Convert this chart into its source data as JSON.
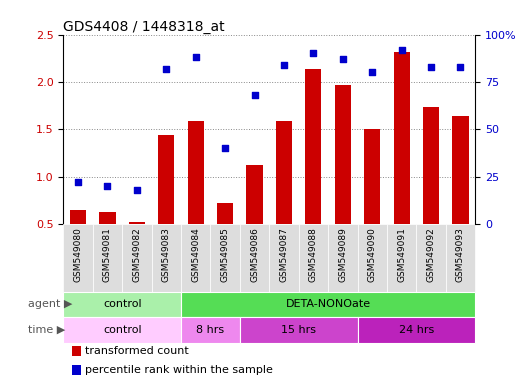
{
  "title": "GDS4408 / 1448318_at",
  "samples": [
    "GSM549080",
    "GSM549081",
    "GSM549082",
    "GSM549083",
    "GSM549084",
    "GSM549085",
    "GSM549086",
    "GSM549087",
    "GSM549088",
    "GSM549089",
    "GSM549090",
    "GSM549091",
    "GSM549092",
    "GSM549093"
  ],
  "transformed_count": [
    0.65,
    0.63,
    0.52,
    1.44,
    1.59,
    0.72,
    1.12,
    1.59,
    2.14,
    1.97,
    1.5,
    2.32,
    1.74,
    1.64
  ],
  "percentile_rank": [
    22,
    20,
    18,
    82,
    88,
    40,
    68,
    84,
    90,
    87,
    80,
    92,
    83,
    83
  ],
  "ylim_left": [
    0.5,
    2.5
  ],
  "ylim_right": [
    0,
    100
  ],
  "yticks_left": [
    0.5,
    1.0,
    1.5,
    2.0,
    2.5
  ],
  "yticks_right": [
    0,
    25,
    50,
    75,
    100
  ],
  "bar_color": "#cc0000",
  "scatter_color": "#0000cc",
  "agent_groups": [
    {
      "label": "control",
      "start": 0,
      "end": 4,
      "color": "#aaf0aa"
    },
    {
      "label": "DETA-NONOate",
      "start": 4,
      "end": 14,
      "color": "#55dd55"
    }
  ],
  "time_groups": [
    {
      "label": "control",
      "start": 0,
      "end": 4,
      "color": "#ffccff"
    },
    {
      "label": "8 hrs",
      "start": 4,
      "end": 6,
      "color": "#ee88ee"
    },
    {
      "label": "15 hrs",
      "start": 6,
      "end": 10,
      "color": "#cc44cc"
    },
    {
      "label": "24 hrs",
      "start": 10,
      "end": 14,
      "color": "#bb22bb"
    }
  ],
  "grid_color": "#888888",
  "bg_color": "#ffffff",
  "tick_label_color_left": "#cc0000",
  "tick_label_color_right": "#0000cc",
  "legend_items": [
    {
      "label": "transformed count",
      "color": "#cc0000"
    },
    {
      "label": "percentile rank within the sample",
      "color": "#0000cc"
    }
  ],
  "agent_row_label": "agent",
  "time_row_label": "time",
  "xticklabel_bg": "#dddddd"
}
